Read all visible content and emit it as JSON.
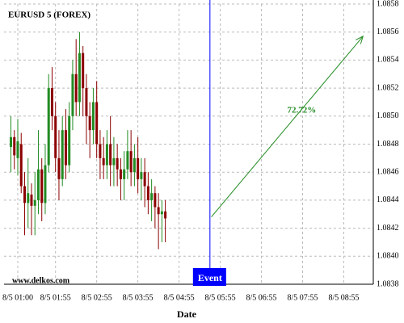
{
  "chart_data": {
    "type": "candlestick",
    "title": "EURUSD 5 (FOREX)",
    "watermark": "www.delkos.com",
    "xlabel": "Date",
    "x": [
      50,
      55,
      60,
      65,
      70,
      75,
      80,
      85,
      90,
      95,
      100,
      105,
      110,
      115,
      120,
      125,
      130,
      135,
      140,
      145,
      150,
      155,
      160,
      165,
      170,
      175,
      180,
      185,
      190,
      195,
      200,
      205,
      210,
      215,
      220,
      225,
      230,
      235,
      240,
      245,
      250,
      255,
      260,
      265,
      270,
      275
    ],
    "open": [
      1.08478,
      1.08485,
      1.0847,
      1.0848,
      1.0845,
      1.08438,
      1.08444,
      1.08436,
      1.0844,
      1.08462,
      1.08438,
      1.08465,
      1.0852,
      1.085,
      1.0847,
      1.08455,
      1.0849,
      1.08465,
      1.085,
      1.0853,
      1.0851,
      1.08545,
      1.0852,
      1.085,
      1.0849,
      1.0851,
      1.0848,
      1.0847,
      1.08465,
      1.0848,
      1.08465,
      1.0847,
      1.08462,
      1.08455,
      1.08462,
      1.08475,
      1.0846,
      1.0847,
      1.08455,
      1.0846,
      1.0845,
      1.0844,
      1.08445,
      1.08435,
      1.0843,
      1.08432
    ],
    "high": [
      1.085,
      1.0849,
      1.08498,
      1.08488,
      1.0846,
      1.0847,
      1.08452,
      1.0846,
      1.0849,
      1.0847,
      1.0848,
      1.0853,
      1.08535,
      1.0851,
      1.0849,
      1.085,
      1.08505,
      1.0851,
      1.0854,
      1.08555,
      1.0856,
      1.0855,
      1.0853,
      1.0851,
      1.0852,
      1.08525,
      1.0849,
      1.08485,
      1.0849,
      1.085,
      1.08485,
      1.0848,
      1.0847,
      1.08475,
      1.0849,
      1.0849,
      1.0848,
      1.08485,
      1.0847,
      1.0847,
      1.0846,
      1.08455,
      1.0845,
      1.08445,
      1.0844,
      1.0844
    ],
    "low": [
      1.0846,
      1.08462,
      1.08458,
      1.08445,
      1.08415,
      1.0842,
      1.08415,
      1.08415,
      1.0843,
      1.08425,
      1.0843,
      1.0846,
      1.0849,
      1.0846,
      1.0844,
      1.0845,
      1.08455,
      1.0846,
      1.0849,
      1.085,
      1.085,
      1.085,
      1.0848,
      1.0847,
      1.0848,
      1.0847,
      1.08455,
      1.08455,
      1.08455,
      1.0845,
      1.0845,
      1.0845,
      1.0844,
      1.0844,
      1.08455,
      1.0845,
      1.0845,
      1.08445,
      1.0844,
      1.08435,
      1.0843,
      1.08425,
      1.0842,
      1.08405,
      1.0841,
      1.0841
    ],
    "close": [
      1.08485,
      1.08472,
      1.08482,
      1.0845,
      1.08438,
      1.08445,
      1.08436,
      1.0844,
      1.08462,
      1.08438,
      1.08465,
      1.0852,
      1.085,
      1.0847,
      1.08455,
      1.0849,
      1.08465,
      1.085,
      1.0853,
      1.0851,
      1.08545,
      1.0852,
      1.085,
      1.0849,
      1.0851,
      1.0848,
      1.0847,
      1.08465,
      1.0848,
      1.08465,
      1.0847,
      1.08462,
      1.08455,
      1.08462,
      1.08475,
      1.0846,
      1.0847,
      1.08455,
      1.0846,
      1.0845,
      1.0844,
      1.08445,
      1.08435,
      1.0843,
      1.08432,
      1.08427
    ],
    "up_color": "#228b22",
    "down_color": "#8b0000",
    "event": {
      "label": "Event",
      "x": 340,
      "color": "#0000ff"
    },
    "forecast": {
      "x": [
        342,
        563
      ],
      "y": [
        1.08428,
        1.08557
      ],
      "label": "72.72%",
      "color": "#228b22"
    },
    "xlim": [
      40,
      578
    ],
    "ylim": [
      1.0838,
      1.0858
    ],
    "xticks": [
      {
        "value": 60,
        "label": "8/5 01:00"
      },
      {
        "value": 115,
        "label": "8/5 01:55"
      },
      {
        "value": 175,
        "label": "8/5 02:55"
      },
      {
        "value": 235,
        "label": "8/5 03:55"
      },
      {
        "value": 295,
        "label": "8/5 04:55"
      },
      {
        "value": 355,
        "label": "8/5 05:55"
      },
      {
        "value": 415,
        "label": "8/5 06:55"
      },
      {
        "value": 475,
        "label": "8/5 07:55"
      },
      {
        "value": 535,
        "label": "8/5 08:55"
      }
    ],
    "yticks": [
      1.0838,
      {
        "value": 1.084,
        "label": "1.0840"
      },
      1.0842,
      1.0844,
      1.0846,
      1.0848,
      {
        "value": 1.085,
        "label": "1.0850"
      },
      1.0852,
      1.0854,
      1.0856,
      1.0858
    ],
    "grid": true
  }
}
